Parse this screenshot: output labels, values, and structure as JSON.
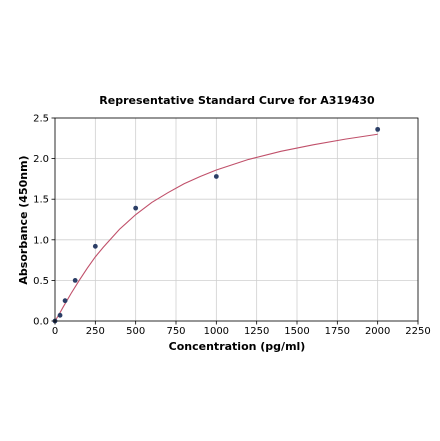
{
  "chart_data": {
    "type": "scatter",
    "title": "Representative Standard Curve for A319430",
    "xlabel": "Concentration (pg/ml)",
    "ylabel": "Absorbance (450nm)",
    "xlim": [
      0,
      2250
    ],
    "ylim": [
      0,
      2.5
    ],
    "xticks": [
      0,
      250,
      500,
      750,
      1000,
      1250,
      1500,
      1750,
      2000,
      2250
    ],
    "yticks": [
      0.0,
      0.5,
      1.0,
      1.5,
      2.0,
      2.5
    ],
    "xtick_labels": [
      "0",
      "250",
      "500",
      "750",
      "1000",
      "1250",
      "1500",
      "1750",
      "2000",
      "2250"
    ],
    "ytick_labels": [
      "0.0",
      "0.5",
      "1.0",
      "1.5",
      "2.0",
      "2.5"
    ],
    "grid": true,
    "points": {
      "x": [
        0,
        31.25,
        62.5,
        125,
        250,
        500,
        1000,
        2000
      ],
      "y": [
        0.0,
        0.07,
        0.25,
        0.5,
        0.92,
        1.39,
        1.78,
        2.36
      ]
    },
    "fit_curve": {
      "x": [
        0,
        25,
        50,
        100,
        150,
        200,
        250,
        300,
        400,
        500,
        600,
        700,
        800,
        900,
        1000,
        1200,
        1400,
        1600,
        1800,
        2000
      ],
      "y": [
        0.0,
        0.08,
        0.17,
        0.34,
        0.5,
        0.65,
        0.79,
        0.91,
        1.13,
        1.31,
        1.46,
        1.58,
        1.69,
        1.78,
        1.86,
        1.99,
        2.09,
        2.17,
        2.24,
        2.3
      ]
    },
    "colors": {
      "points": "#2b3e66",
      "curve": "#c0506a",
      "grid": "#cfcfcf"
    }
  }
}
